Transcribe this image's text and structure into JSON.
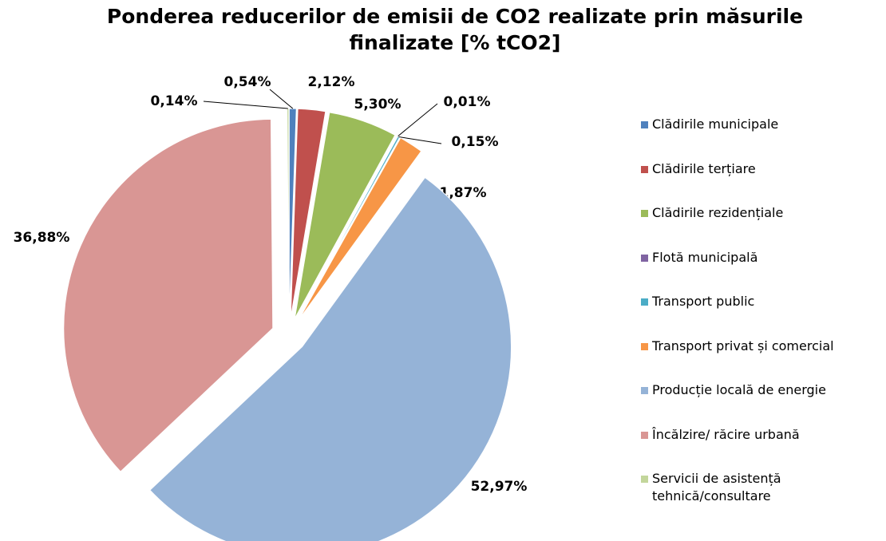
{
  "chart_data": {
    "type": "pie",
    "title": "Ponderea reducerilor de emisii de CO2 realizate prin măsurile finalizate [% tCO2]",
    "categories": [
      "Clădirile municipale",
      "Clădirile terțiare",
      "Clădirile rezidențiale",
      "Flotă municipală",
      "Transport public",
      "Transport privat și comercial",
      "Producție locală de energie",
      "Încălzire/ răcire urbană",
      "Servicii de asistență tehnică/consultare"
    ],
    "values": [
      0.54,
      2.12,
      5.3,
      0.01,
      0.15,
      1.87,
      52.97,
      36.88,
      0.14
    ],
    "value_labels": [
      "0,54%",
      "2,12%",
      "5,30%",
      "0,01%",
      "0,15%",
      "1,87%",
      "52,97%",
      "36,88%",
      "0,14%"
    ],
    "colors": [
      "#4f81bd",
      "#c0504d",
      "#9bbb59",
      "#8064a2",
      "#4bacc6",
      "#f79646",
      "#95b3d7",
      "#d99694",
      "#c3d69b"
    ],
    "legend": "right"
  }
}
